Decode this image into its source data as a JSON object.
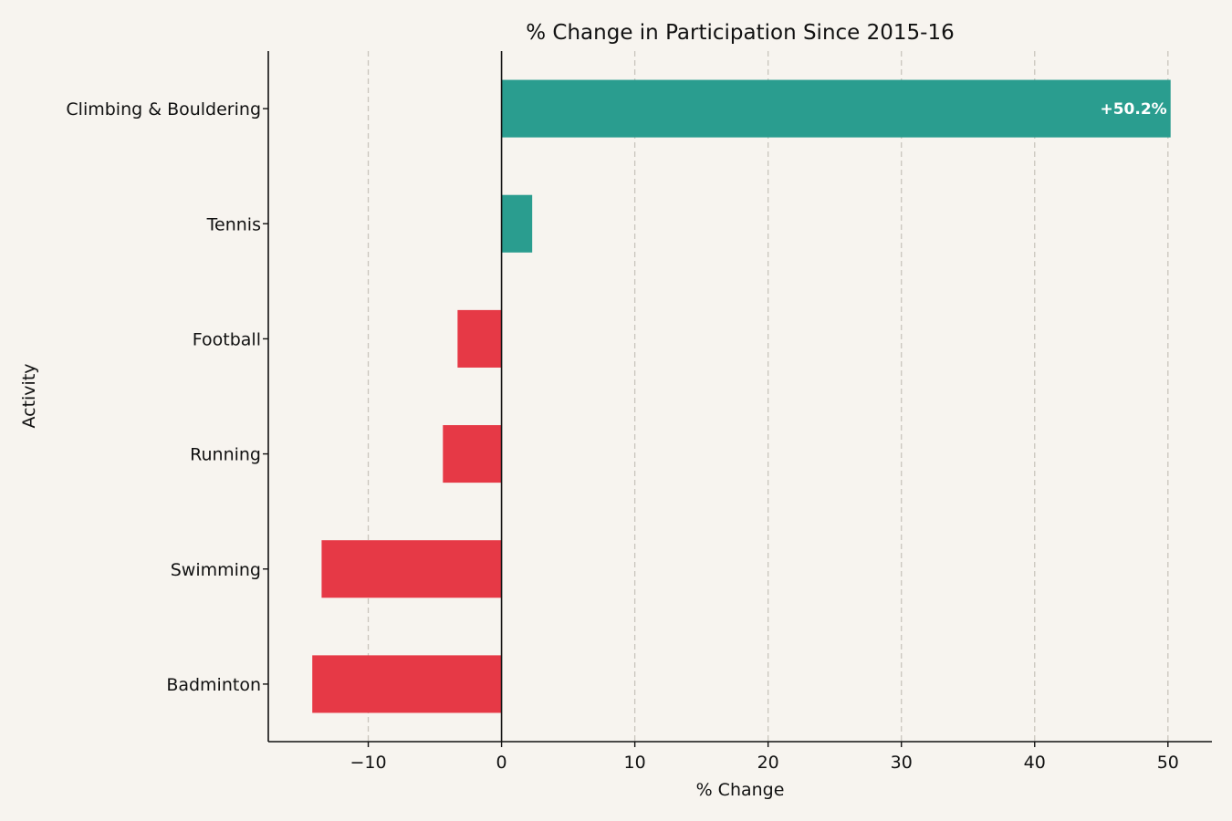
{
  "chart_data": {
    "type": "bar",
    "orientation": "horizontal",
    "title": "% Change in Participation Since 2015-16",
    "xlabel": "% Change",
    "ylabel": "Activity",
    "categories": [
      "Climbing & Bouldering",
      "Tennis",
      "Football",
      "Running",
      "Swimming",
      "Badminton"
    ],
    "values": [
      50.2,
      2.3,
      -3.3,
      -4.4,
      -13.5,
      -14.2
    ],
    "data_labels": [
      {
        "category": "Climbing & Bouldering",
        "text": "+50.2%"
      }
    ],
    "xlim": [
      -17.5,
      53.3
    ],
    "xticks": [
      -10,
      0,
      10,
      20,
      30,
      40,
      50
    ],
    "xtick_labels": [
      "−10",
      "0",
      "10",
      "20",
      "30",
      "40",
      "50"
    ],
    "grid": "vertical dashed",
    "colors": {
      "positive": "#2a9d8f",
      "negative": "#e63946",
      "background": "#f7f4ef"
    }
  }
}
